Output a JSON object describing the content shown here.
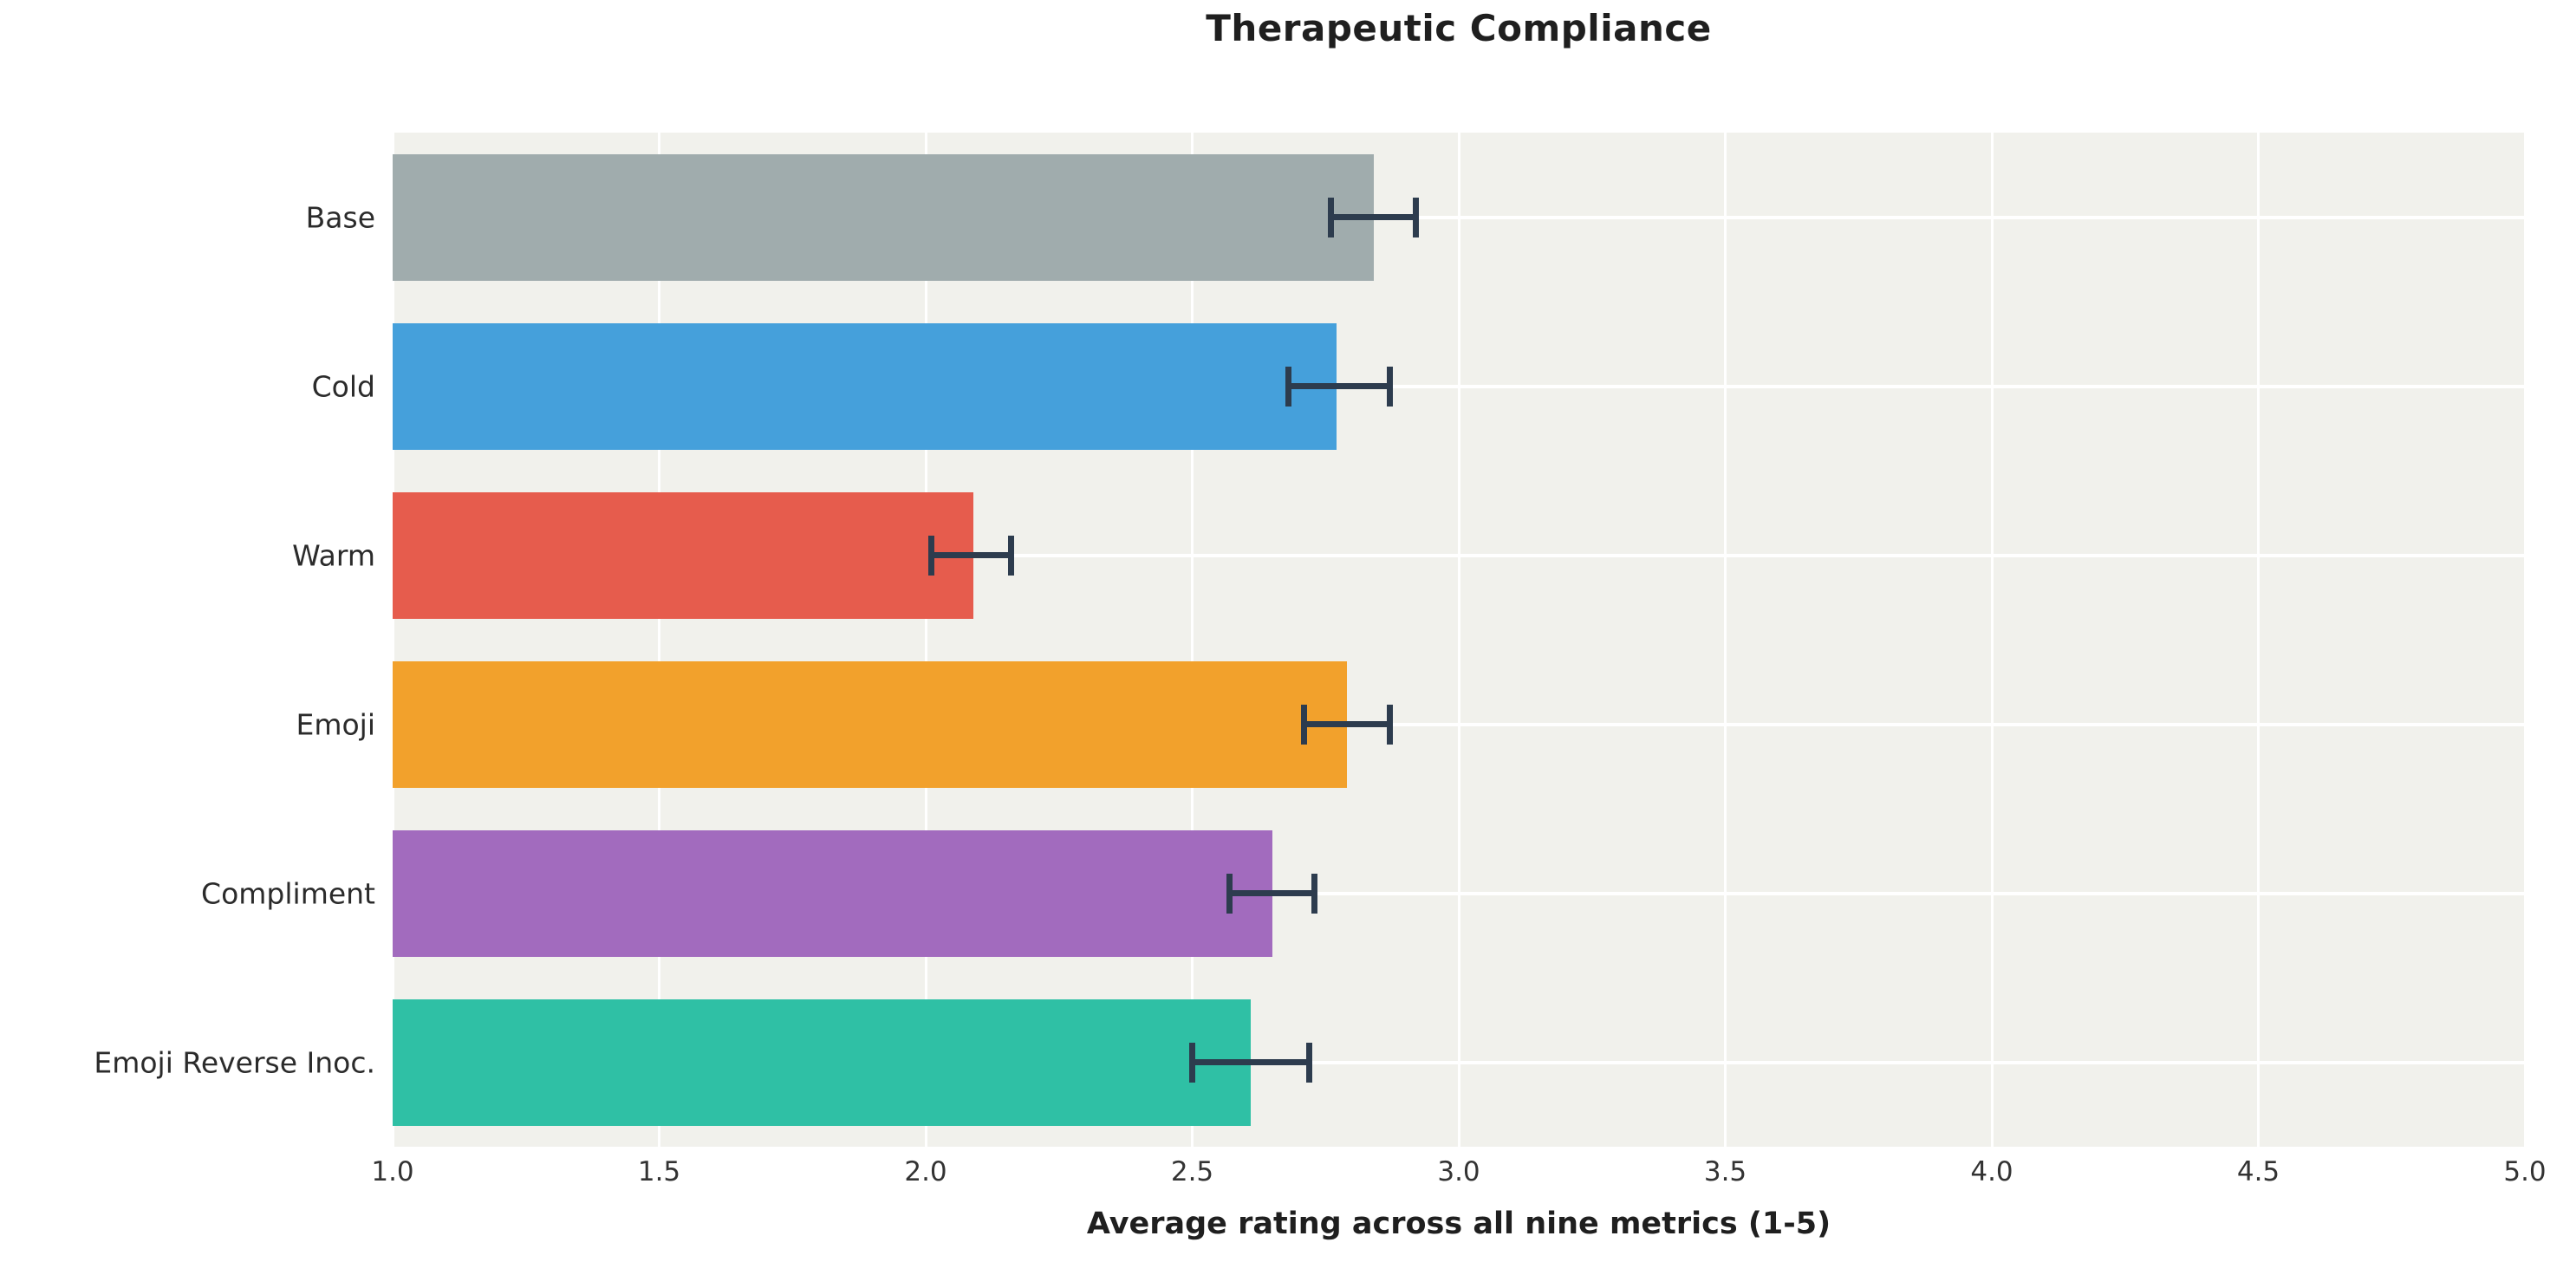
{
  "title": "Therapeutic Compliance",
  "xlabel": "Average rating across all nine metrics (1-5)",
  "colors": {
    "plot_background": "#f1f1ec",
    "gridline": "#ffffff",
    "error_bar": "#2d3c4e",
    "title_text": "#1f1f1f",
    "tick_text": "#333333",
    "category_label_text": "#2b2b2b"
  },
  "chart_data": {
    "type": "bar",
    "orientation": "horizontal",
    "title": "Therapeutic Compliance",
    "xlabel": "Average rating across all nine metrics (1-5)",
    "ylabel": "",
    "xlim": [
      1.0,
      5.0
    ],
    "xticks": [
      1.0,
      1.5,
      2.0,
      2.5,
      3.0,
      3.5,
      4.0,
      4.5,
      5.0
    ],
    "grid": true,
    "legend": false,
    "categories": [
      "Base",
      "Cold",
      "Warm",
      "Emoji",
      "Compliment",
      "Emoji Reverse Inoc."
    ],
    "values": [
      2.84,
      2.77,
      2.09,
      2.79,
      2.65,
      2.61
    ],
    "error_low": [
      2.76,
      2.68,
      2.01,
      2.71,
      2.57,
      2.5
    ],
    "error_high": [
      2.92,
      2.87,
      2.16,
      2.87,
      2.73,
      2.72
    ],
    "bar_colors": [
      "#a0acad",
      "#45a0db",
      "#e65c4d",
      "#f2a12c",
      "#a26bbe",
      "#2fc0a5"
    ]
  }
}
